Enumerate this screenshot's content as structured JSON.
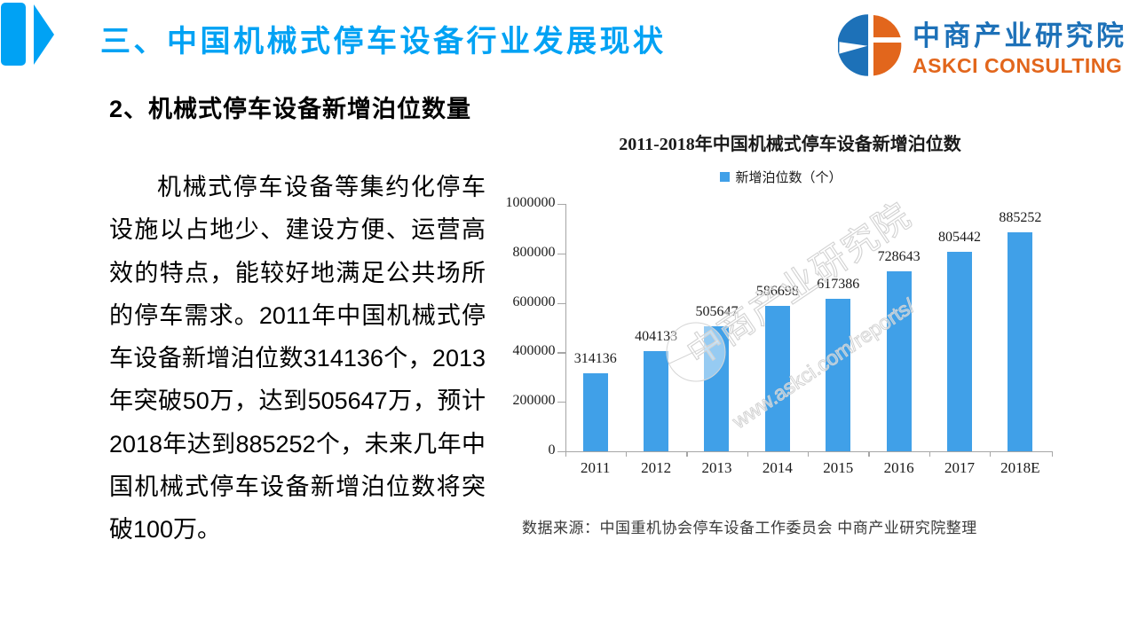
{
  "slide": {
    "title": "三、中国机械式停车设备行业发展现状",
    "section_heading": "2、机械式停车设备新增泊位数量",
    "paragraph_lines": [
      "机械式停车设备等集约化停车",
      "设施以占地少、建设方便、运营高",
      "效的特点，能较好地满足公共场所",
      "的停车需求。2011年中国机械式停",
      "车设备新增泊位数314136个，2013",
      "年突破50万，达到505647万，预计",
      "2018年达到885252个，未来几年中",
      "国机械式停车设备新增泊位数将突",
      "破100万。"
    ],
    "source_note": "数据来源：中国重机协会停车设备工作委员会 中商产业研究院整理"
  },
  "logo": {
    "cn_name": "中商产业研究院",
    "en_name": "ASKCI CONSULTING",
    "blue": "#1D71B8",
    "orange": "#E2661C"
  },
  "watermark": {
    "text": "中商产业研究院",
    "url": "www.askci.com/reports/"
  },
  "colors": {
    "accent_blue": "#00A2F4",
    "bar_blue": "#40A0E8",
    "axis_gray": "#A6A6A6"
  },
  "chart_data": {
    "type": "bar",
    "title": "2011-2018年中国机械式停车设备新增泊位数",
    "legend": "新增泊位数（个）",
    "categories": [
      "2011",
      "2012",
      "2013",
      "2014",
      "2015",
      "2016",
      "2017",
      "2018E"
    ],
    "values": [
      314136,
      404133,
      505647,
      586698,
      617386,
      728643,
      805442,
      885252
    ],
    "ylabel": "",
    "xlabel": "",
    "ylim": [
      0,
      1000000
    ],
    "ytick_step": 200000,
    "grid": false,
    "legend_position": "top"
  }
}
